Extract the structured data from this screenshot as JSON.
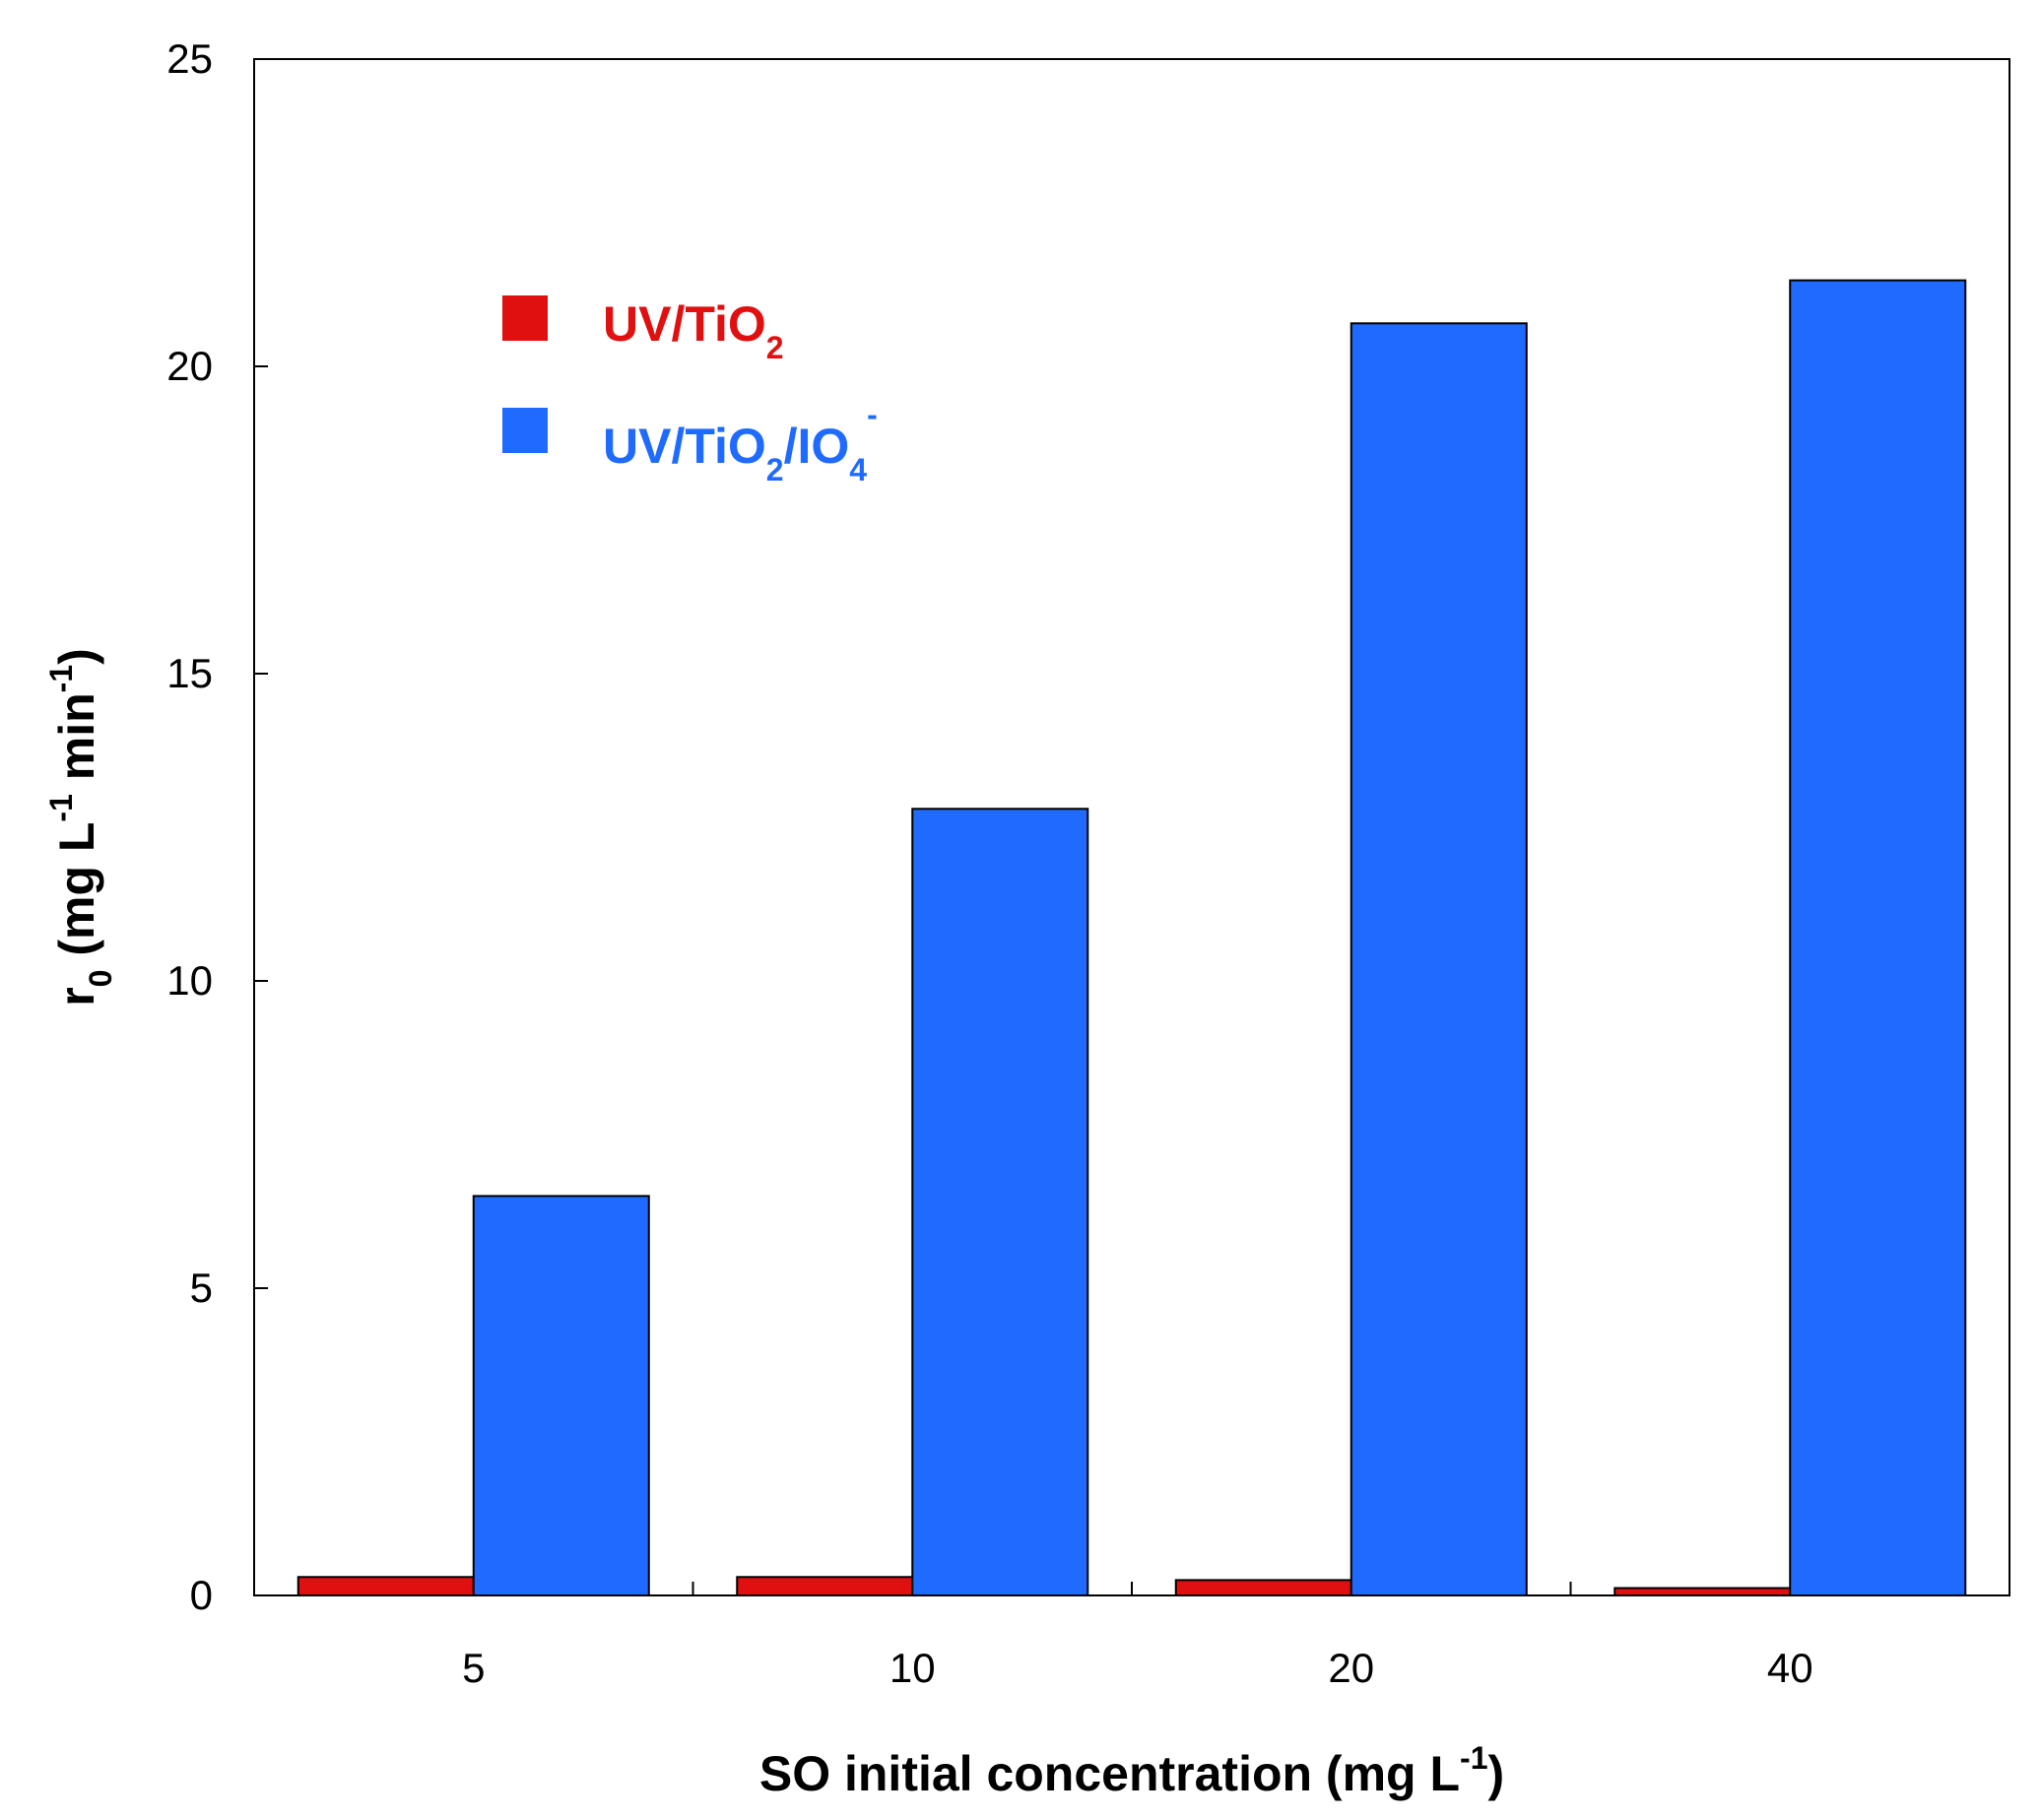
{
  "chart_data": {
    "type": "bar",
    "categories": [
      "5",
      "10",
      "20",
      "40"
    ],
    "series": [
      {
        "name": "UV/TiO2",
        "label_parts": {
          "base": "UV/TiO",
          "sub": "2"
        },
        "color": "#e01010",
        "values": [
          0.3,
          0.3,
          0.25,
          0.12
        ]
      },
      {
        "name": "UV/TiO2/IO4-",
        "label_parts": {
          "base": "UV/TiO",
          "sub1": "2",
          "mid": "/IO",
          "sub2": "4",
          "sup": "-"
        },
        "color": "#1f6bff",
        "values": [
          6.5,
          12.8,
          20.7,
          21.4
        ]
      }
    ],
    "ylim": [
      0,
      25
    ],
    "yticks": [
      "0",
      "5",
      "10",
      "15",
      "20",
      "25"
    ],
    "xlabel": {
      "text": "SO initial concentration (mg L",
      "sup": "-1",
      "close": ")"
    },
    "ylabel": {
      "r": "r",
      "sub": "0",
      "text1": " (mg L",
      "sup1": "-1",
      "text2": " min",
      "sup2": "-1",
      "close": ")"
    },
    "legend_position": "top-left"
  }
}
